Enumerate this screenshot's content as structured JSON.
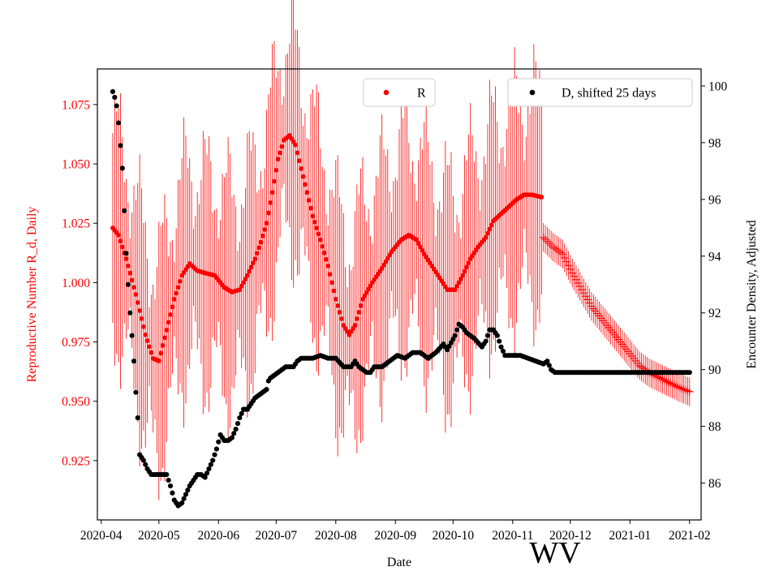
{
  "chart_data": {
    "type": "scatter",
    "title": "",
    "xlabel": "Date",
    "ylabel_left": "Reproductive Number R_d, Daily",
    "ylabel_right": "Encounter Density, Adjusted",
    "watermark": "WV",
    "xlim": [
      "2020-03-30",
      "2021-02-07"
    ],
    "ylim_left": [
      0.9,
      1.09
    ],
    "ylim_right": [
      84.7,
      100.6
    ],
    "x_ticks": [
      "2020-04",
      "2020-05",
      "2020-06",
      "2020-07",
      "2020-08",
      "2020-09",
      "2020-10",
      "2020-11",
      "2020-12",
      "2021-01",
      "2021-02"
    ],
    "y_ticks_left": [
      "0.925",
      "0.950",
      "0.975",
      "1.000",
      "1.025",
      "1.050",
      "1.075"
    ],
    "y_ticks_right": [
      "86",
      "88",
      "90",
      "92",
      "94",
      "96",
      "98",
      "100"
    ],
    "colors": {
      "R": "#ff0000",
      "D": "#000000",
      "axis": "#000000"
    },
    "legend": [
      {
        "label": "R",
        "color": "#ff0000",
        "placement": "top-center"
      },
      {
        "label": "D, shifted 25 days",
        "color": "#000000",
        "placement": "top-right"
      }
    ],
    "series": [
      {
        "name": "R",
        "axis": "left",
        "marker": "dot",
        "color": "#ff0000",
        "x_start": "2020-04-07",
        "x_end": "2020-11-16",
        "keypoints": [
          [
            0,
            1.023
          ],
          [
            3,
            1.02
          ],
          [
            7,
            1.01
          ],
          [
            12,
            0.995
          ],
          [
            17,
            0.978
          ],
          [
            21,
            0.968
          ],
          [
            24,
            0.967
          ],
          [
            28,
            0.98
          ],
          [
            32,
            0.993
          ],
          [
            36,
            1.003
          ],
          [
            40,
            1.008
          ],
          [
            44,
            1.005
          ],
          [
            48,
            1.004
          ],
          [
            53,
            1.003
          ],
          [
            58,
            0.998
          ],
          [
            62,
            0.996
          ],
          [
            66,
            0.997
          ],
          [
            70,
            1.003
          ],
          [
            74,
            1.01
          ],
          [
            77,
            1.017
          ],
          [
            80,
            1.025
          ],
          [
            83,
            1.038
          ],
          [
            86,
            1.052
          ],
          [
            89,
            1.06
          ],
          [
            92,
            1.062
          ],
          [
            95,
            1.058
          ],
          [
            98,
            1.048
          ],
          [
            101,
            1.038
          ],
          [
            104,
            1.028
          ],
          [
            108,
            1.018
          ],
          [
            112,
            1.007
          ],
          [
            116,
            0.993
          ],
          [
            120,
            0.982
          ],
          [
            123,
            0.978
          ],
          [
            126,
            0.982
          ],
          [
            130,
            0.993
          ],
          [
            135,
            1.0
          ],
          [
            140,
            1.006
          ],
          [
            145,
            1.013
          ],
          [
            150,
            1.018
          ],
          [
            154,
            1.02
          ],
          [
            158,
            1.018
          ],
          [
            162,
            1.012
          ],
          [
            166,
            1.007
          ],
          [
            170,
            1.002
          ],
          [
            174,
            0.997
          ],
          [
            178,
            0.997
          ],
          [
            182,
            1.003
          ],
          [
            186,
            1.01
          ],
          [
            190,
            1.015
          ],
          [
            194,
            1.019
          ],
          [
            198,
            1.026
          ],
          [
            202,
            1.029
          ],
          [
            206,
            1.032
          ],
          [
            210,
            1.035
          ],
          [
            214,
            1.037
          ],
          [
            218,
            1.037
          ],
          [
            223,
            1.036
          ]
        ],
        "error_band": "+/- 0.03 to 0.05 (daily oscillating error bars)"
      },
      {
        "name": "R (extrapolated)",
        "axis": "left",
        "marker": "plus",
        "color": "#ff0000",
        "x_start": "2020-11-17",
        "x_end": "2021-02-01",
        "keypoints": [
          [
            0,
            1.019
          ],
          [
            5,
            1.015
          ],
          [
            10,
            1.012
          ],
          [
            15,
            1.004
          ],
          [
            20,
            0.997
          ],
          [
            25,
            0.99
          ],
          [
            30,
            0.985
          ],
          [
            35,
            0.98
          ],
          [
            40,
            0.975
          ],
          [
            45,
            0.97
          ],
          [
            50,
            0.965
          ],
          [
            55,
            0.962
          ],
          [
            60,
            0.96
          ],
          [
            65,
            0.958
          ],
          [
            70,
            0.956
          ],
          [
            76,
            0.954
          ]
        ],
        "error_band": "+/- 0.006"
      },
      {
        "name": "D, shifted 25 days",
        "axis": "right",
        "marker": "dot",
        "color": "#000000",
        "x_start": "2020-04-07",
        "x_end": "2021-02-01",
        "keypoints": [
          [
            0,
            99.8
          ],
          [
            1,
            99.6
          ],
          [
            2,
            99.3
          ],
          [
            3,
            98.7
          ],
          [
            4,
            97.9
          ],
          [
            5,
            97.1
          ],
          [
            6,
            95.6
          ],
          [
            7,
            94.1
          ],
          [
            8,
            93.0
          ],
          [
            9,
            92.0
          ],
          [
            10,
            91.2
          ],
          [
            11,
            90.3
          ],
          [
            12,
            89.2
          ],
          [
            13,
            88.3
          ],
          [
            14,
            87.0
          ],
          [
            16,
            86.8
          ],
          [
            18,
            86.5
          ],
          [
            20,
            86.3
          ],
          [
            24,
            86.3
          ],
          [
            28,
            86.3
          ],
          [
            30,
            85.9
          ],
          [
            32,
            85.4
          ],
          [
            34,
            85.2
          ],
          [
            36,
            85.3
          ],
          [
            38,
            85.6
          ],
          [
            40,
            85.9
          ],
          [
            42,
            86.1
          ],
          [
            44,
            86.3
          ],
          [
            46,
            86.3
          ],
          [
            48,
            86.2
          ],
          [
            50,
            86.5
          ],
          [
            52,
            86.8
          ],
          [
            54,
            87.2
          ],
          [
            56,
            87.7
          ],
          [
            58,
            87.5
          ],
          [
            60,
            87.5
          ],
          [
            62,
            87.6
          ],
          [
            64,
            87.9
          ],
          [
            66,
            88.3
          ],
          [
            68,
            88.6
          ],
          [
            70,
            88.6
          ],
          [
            72,
            88.8
          ],
          [
            74,
            89.0
          ],
          [
            76,
            89.1
          ],
          [
            78,
            89.2
          ],
          [
            80,
            89.3
          ],
          [
            81,
            89.6
          ],
          [
            82,
            89.7
          ],
          [
            84,
            89.8
          ],
          [
            86,
            89.9
          ],
          [
            88,
            90.0
          ],
          [
            90,
            90.1
          ],
          [
            92,
            90.1
          ],
          [
            94,
            90.1
          ],
          [
            96,
            90.3
          ],
          [
            98,
            90.4
          ],
          [
            100,
            90.4
          ],
          [
            104,
            90.4
          ],
          [
            108,
            90.5
          ],
          [
            112,
            90.4
          ],
          [
            116,
            90.4
          ],
          [
            120,
            90.1
          ],
          [
            124,
            90.1
          ],
          [
            126,
            90.3
          ],
          [
            128,
            90.1
          ],
          [
            132,
            89.9
          ],
          [
            134,
            89.9
          ],
          [
            136,
            90.1
          ],
          [
            140,
            90.1
          ],
          [
            144,
            90.3
          ],
          [
            148,
            90.5
          ],
          [
            152,
            90.4
          ],
          [
            156,
            90.6
          ],
          [
            160,
            90.6
          ],
          [
            164,
            90.4
          ],
          [
            168,
            90.6
          ],
          [
            172,
            90.9
          ],
          [
            174,
            90.7
          ],
          [
            178,
            91.2
          ],
          [
            180,
            91.6
          ],
          [
            182,
            91.5
          ],
          [
            184,
            91.3
          ],
          [
            188,
            91.1
          ],
          [
            192,
            90.8
          ],
          [
            194,
            91.0
          ],
          [
            196,
            91.4
          ],
          [
            198,
            91.4
          ],
          [
            200,
            91.2
          ],
          [
            202,
            90.8
          ],
          [
            204,
            90.5
          ],
          [
            208,
            90.5
          ],
          [
            212,
            90.5
          ],
          [
            216,
            90.4
          ],
          [
            220,
            90.3
          ],
          [
            224,
            90.2
          ],
          [
            226,
            90.3
          ],
          [
            228,
            90.0
          ],
          [
            230,
            89.9
          ],
          [
            236,
            89.9
          ],
          [
            250,
            89.9
          ],
          [
            270,
            89.9
          ],
          [
            300,
            89.9
          ]
        ]
      }
    ]
  }
}
